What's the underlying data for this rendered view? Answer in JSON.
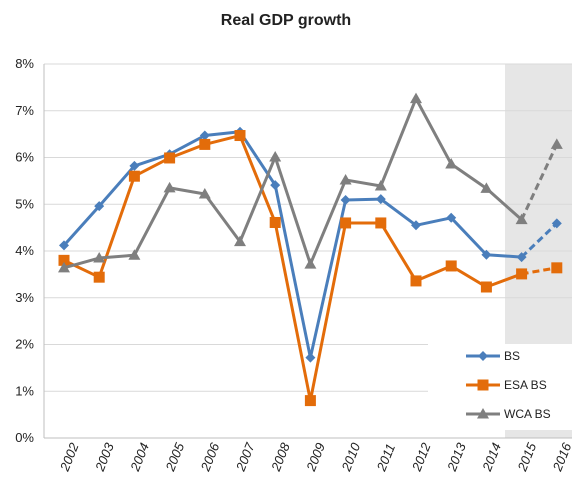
{
  "chart_data": {
    "type": "line",
    "title": "Real GDP growth",
    "xlabel": "",
    "ylabel": "",
    "categories": [
      "2002",
      "2003",
      "2004",
      "2005",
      "2006",
      "2007",
      "2008",
      "2009",
      "2010",
      "2011",
      "2012",
      "2013",
      "2014",
      "2015",
      "2016"
    ],
    "ylim": [
      0,
      8
    ],
    "yticks": [
      "0%",
      "1%",
      "2%",
      "3%",
      "4%",
      "5%",
      "6%",
      "7%",
      "8%"
    ],
    "grid": true,
    "legend_position": "bottom-right",
    "shaded_period": [
      "2015",
      "2016"
    ],
    "projection_start": "2015",
    "series": [
      {
        "name": "BS",
        "color": "#4a7ebb",
        "marker": "diamond",
        "values": [
          4.12,
          4.96,
          5.82,
          6.07,
          6.47,
          6.55,
          5.41,
          1.72,
          5.09,
          5.11,
          4.55,
          4.71,
          3.92,
          3.87,
          4.59
        ]
      },
      {
        "name": "ESA BS",
        "color": "#e36c0a",
        "marker": "square",
        "values": [
          3.8,
          3.44,
          5.6,
          5.99,
          6.28,
          6.47,
          4.61,
          0.8,
          4.6,
          4.6,
          3.36,
          3.68,
          3.23,
          3.51,
          3.64
        ]
      },
      {
        "name": "WCA BS",
        "color": "#7f7f7f",
        "marker": "triangle",
        "values": [
          3.64,
          3.85,
          3.91,
          5.35,
          5.22,
          4.2,
          6.01,
          3.72,
          5.52,
          5.39,
          7.26,
          5.86,
          5.34,
          4.67,
          6.28
        ]
      }
    ]
  }
}
